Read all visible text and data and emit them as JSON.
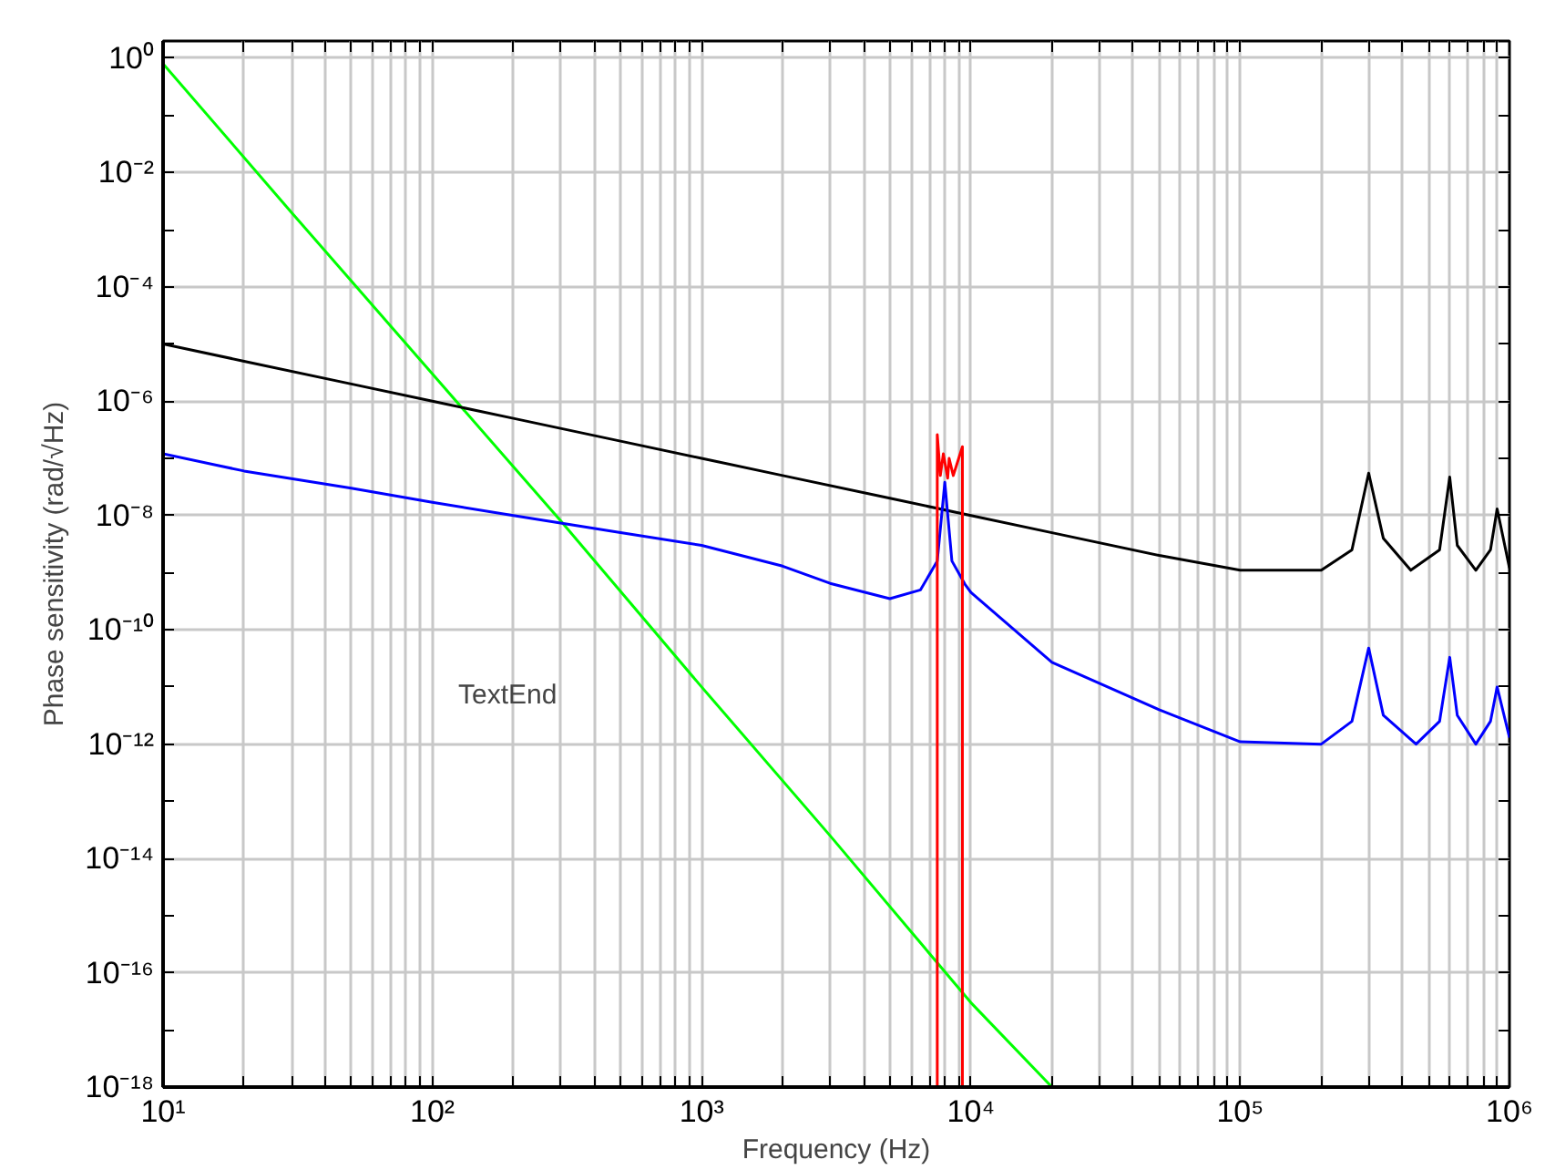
{
  "chart_data": {
    "type": "line",
    "xlabel": "Frequency (Hz)",
    "ylabel": "Phase sensitivity (rad/√Hz)",
    "log": "xy",
    "grid": true,
    "marker": "none",
    "line_style": "solid",
    "annotations": [
      "TextEnd"
    ],
    "xlim": [
      10,
      1000000
    ],
    "ylim": [
      1e-18,
      2
    ],
    "xticks": [
      {
        "value": 10,
        "label": "10¹"
      },
      {
        "value": 20,
        "label": null
      },
      {
        "value": 30,
        "label": null
      },
      {
        "value": 40,
        "label": null
      },
      {
        "value": 50,
        "label": null
      },
      {
        "value": 60,
        "label": null
      },
      {
        "value": 70,
        "label": null
      },
      {
        "value": 80,
        "label": null
      },
      {
        "value": 90,
        "label": null
      },
      {
        "value": 100,
        "label": "10²"
      },
      {
        "value": 200,
        "label": null
      },
      {
        "value": 300,
        "label": null
      },
      {
        "value": 400,
        "label": null
      },
      {
        "value": 500,
        "label": null
      },
      {
        "value": 600,
        "label": null
      },
      {
        "value": 700,
        "label": null
      },
      {
        "value": 800,
        "label": null
      },
      {
        "value": 900,
        "label": null
      },
      {
        "value": 1000,
        "label": "10³"
      },
      {
        "value": 2000,
        "label": null
      },
      {
        "value": 3000,
        "label": null
      },
      {
        "value": 4000,
        "label": null
      },
      {
        "value": 5000,
        "label": null
      },
      {
        "value": 6000,
        "label": null
      },
      {
        "value": 7000,
        "label": null
      },
      {
        "value": 8000,
        "label": null
      },
      {
        "value": 9000,
        "label": null
      },
      {
        "value": 10000,
        "label": "10⁴"
      },
      {
        "value": 20000,
        "label": null
      },
      {
        "value": 30000,
        "label": null
      },
      {
        "value": 40000,
        "label": null
      },
      {
        "value": 50000,
        "label": null
      },
      {
        "value": 60000,
        "label": null
      },
      {
        "value": 70000,
        "label": null
      },
      {
        "value": 80000,
        "label": null
      },
      {
        "value": 90000,
        "label": null
      },
      {
        "value": 100000,
        "label": "10⁵"
      },
      {
        "value": 200000,
        "label": null
      },
      {
        "value": 300000,
        "label": null
      },
      {
        "value": 400000,
        "label": null
      },
      {
        "value": 500000,
        "label": null
      },
      {
        "value": 600000,
        "label": null
      },
      {
        "value": 700000,
        "label": null
      },
      {
        "value": 800000,
        "label": null
      },
      {
        "value": 900000,
        "label": null
      },
      {
        "value": 1000000,
        "label": "10⁶"
      }
    ],
    "yticks": [
      {
        "value": 1e-18,
        "label": "10⁻¹⁸"
      },
      {
        "value": 1e-17,
        "label": null
      },
      {
        "value": 1e-16,
        "label": "10⁻¹⁶"
      },
      {
        "value": 1e-15,
        "label": null
      },
      {
        "value": 1e-14,
        "label": "10⁻¹⁴"
      },
      {
        "value": 1e-13,
        "label": null
      },
      {
        "value": 1e-12,
        "label": "10⁻¹²"
      },
      {
        "value": 1e-11,
        "label": null
      },
      {
        "value": 1e-10,
        "label": "10⁻¹⁰"
      },
      {
        "value": 1e-09,
        "label": null
      },
      {
        "value": 1e-08,
        "label": "10⁻⁸"
      },
      {
        "value": 1e-07,
        "label": null
      },
      {
        "value": 1e-06,
        "label": "10⁻⁶"
      },
      {
        "value": 1e-05,
        "label": null
      },
      {
        "value": 0.0001,
        "label": "10⁻⁴"
      },
      {
        "value": 0.001,
        "label": null
      },
      {
        "value": 0.01,
        "label": "10⁻²"
      },
      {
        "value": 0.1,
        "label": null
      },
      {
        "value": 1,
        "label": "10⁰"
      }
    ],
    "series": [
      {
        "color": "#00ff00",
        "x": [
          10,
          30,
          100,
          300,
          1000,
          3000,
          10000,
          20000
        ],
        "values": [
          0.8,
          0.002,
          3e-06,
          8e-09,
          1e-11,
          2.5e-14,
          3e-17,
          1e-18
        ]
      },
      {
        "color": "#000000",
        "x": [
          10,
          20,
          50,
          100,
          200,
          500,
          1000,
          2000,
          5000,
          10000,
          20000,
          50000,
          100000,
          200000,
          260000,
          300000,
          340000,
          430000,
          550000,
          600000,
          640000,
          750000,
          850000,
          900000,
          1000000
        ],
        "values": [
          1e-05,
          5e-06,
          2e-06,
          1e-06,
          5e-07,
          2e-07,
          1e-07,
          5e-08,
          2e-08,
          1e-08,
          5e-09,
          2e-09,
          1.1e-09,
          1.1e-09,
          2.5e-09,
          5.5e-08,
          4e-09,
          1.1e-09,
          2.5e-09,
          4.7e-08,
          3e-09,
          1.1e-09,
          2.5e-09,
          1.3e-08,
          1.2e-09
        ]
      },
      {
        "color": "#0000ff",
        "x": [
          10,
          20,
          50,
          100,
          200,
          500,
          1000,
          2000,
          3000,
          5000,
          6500,
          7500,
          8000,
          8500,
          9500,
          10000,
          20000,
          50000,
          100000,
          200000,
          260000,
          300000,
          340000,
          450000,
          550000,
          600000,
          640000,
          750000,
          850000,
          900000,
          1000000
        ],
        "values": [
          1.2e-07,
          6e-08,
          3e-08,
          1.7e-08,
          1e-08,
          5e-09,
          3e-09,
          1.3e-09,
          6.5e-10,
          3.5e-10,
          5e-10,
          1.6e-09,
          3.8e-08,
          1.6e-09,
          6.3e-10,
          4.5e-10,
          2.7e-11,
          4e-12,
          1.1e-12,
          1e-12,
          2.5e-12,
          4.8e-11,
          3.2e-12,
          1e-12,
          2.5e-12,
          3.3e-11,
          3.2e-12,
          1e-12,
          2.5e-12,
          1e-11,
          1.3e-12
        ]
      },
      {
        "color": "#ff0000",
        "x": [
          7500,
          7500,
          7700,
          7900,
          8200,
          8300,
          8600,
          9300,
          9300
        ],
        "values": [
          1e-18,
          2.6e-07,
          5e-08,
          1.2e-07,
          4.5e-08,
          1e-07,
          5e-08,
          1.6e-07,
          1e-18
        ]
      }
    ]
  }
}
